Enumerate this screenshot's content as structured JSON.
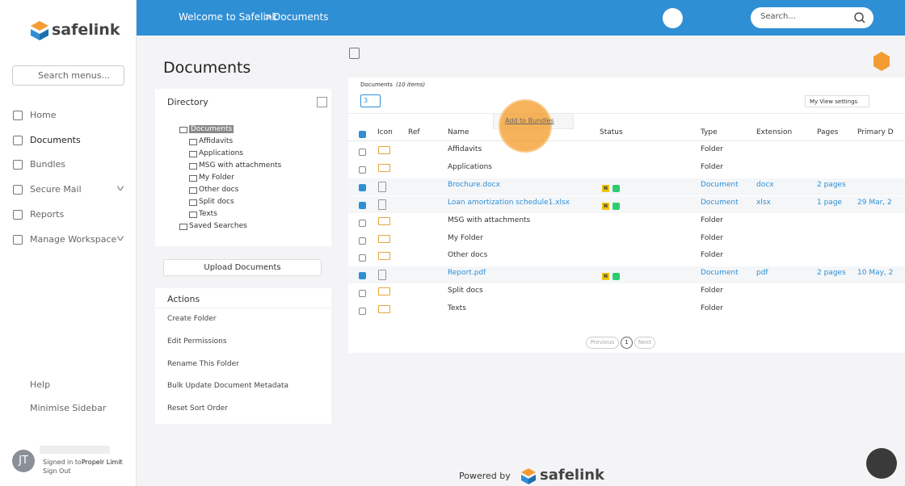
{
  "sidebar": {
    "logo": "safelink",
    "search": "Search menus...",
    "menu": [
      {
        "label": "Home"
      },
      {
        "label": "Documents",
        "active": true
      },
      {
        "label": "Bundles"
      },
      {
        "label": "Secure Mail",
        "expand": true
      },
      {
        "label": "Reports"
      },
      {
        "label": "Manage Workspace",
        "expand": true
      }
    ],
    "bottom": [
      "Help",
      "Minimise Sidebar"
    ],
    "user": {
      "initials": "JT",
      "signed_in": "Signed in to",
      "org": "Propelr Limit",
      "sign_out": "Sign Out"
    }
  },
  "topbar": {
    "home": "Welcome to Safelink",
    "separator": ">",
    "current": "Documents",
    "search": "Search..."
  },
  "page_title": "Documents",
  "directory": {
    "title": "Directory",
    "tree": [
      {
        "label": "Documents",
        "level": 0,
        "selected": true
      },
      {
        "label": "Affidavits",
        "level": 1
      },
      {
        "label": "Applications",
        "level": 1
      },
      {
        "label": "MSG with attachments",
        "level": 1
      },
      {
        "label": "My Folder",
        "level": 1
      },
      {
        "label": "Other docs",
        "level": 1
      },
      {
        "label": "Split docs",
        "level": 1
      },
      {
        "label": "Texts",
        "level": 1
      },
      {
        "label": "Saved Searches",
        "level": 0
      }
    ]
  },
  "upload_button": "Upload Documents",
  "actions": {
    "title": "Actions",
    "items": [
      "Create Folder",
      "Edit Permissions",
      "Rename This Folder",
      "Bulk Update Document Metadata",
      "Reset Sort Order"
    ]
  },
  "documents": {
    "label": "Documents",
    "count": "(10 items)",
    "selected_count": "3",
    "tooltip": "Add to Bundles",
    "view_settings": "My View settings",
    "columns": [
      "Icon",
      "Ref",
      "Name",
      "Status",
      "Type",
      "Extension",
      "Pages",
      "Primary D"
    ],
    "rows": [
      {
        "icon": "folder",
        "name": "Affidavits",
        "type": "Folder"
      },
      {
        "icon": "folder",
        "name": "Applications",
        "type": "Folder"
      },
      {
        "icon": "doc",
        "name": "Brochure.docx",
        "status": "N",
        "type": "Document",
        "extension": "docx",
        "pages": "2 pages",
        "selected": true
      },
      {
        "icon": "sheet",
        "name": "Loan amortization schedule1.xlsx",
        "status": "N",
        "type": "Document",
        "extension": "xlsx",
        "pages": "1 page",
        "date": "29 Mar, 2",
        "selected": true
      },
      {
        "icon": "folder",
        "name": "MSG with attachments",
        "type": "Folder"
      },
      {
        "icon": "folder",
        "name": "My Folder",
        "type": "Folder"
      },
      {
        "icon": "folder",
        "name": "Other docs",
        "type": "Folder"
      },
      {
        "icon": "pdf",
        "name": "Report.pdf",
        "status": "N",
        "type": "Document",
        "extension": "pdf",
        "pages": "2 pages",
        "date": "10 May, 2",
        "selected": true
      },
      {
        "icon": "folder",
        "name": "Split docs",
        "type": "Folder"
      },
      {
        "icon": "folder",
        "name": "Texts",
        "type": "Folder"
      }
    ],
    "pagination": {
      "previous": "Previous",
      "page": "1",
      "next": "Next"
    }
  },
  "footer": {
    "powered_by": "Powered by",
    "logo": "safelink"
  }
}
